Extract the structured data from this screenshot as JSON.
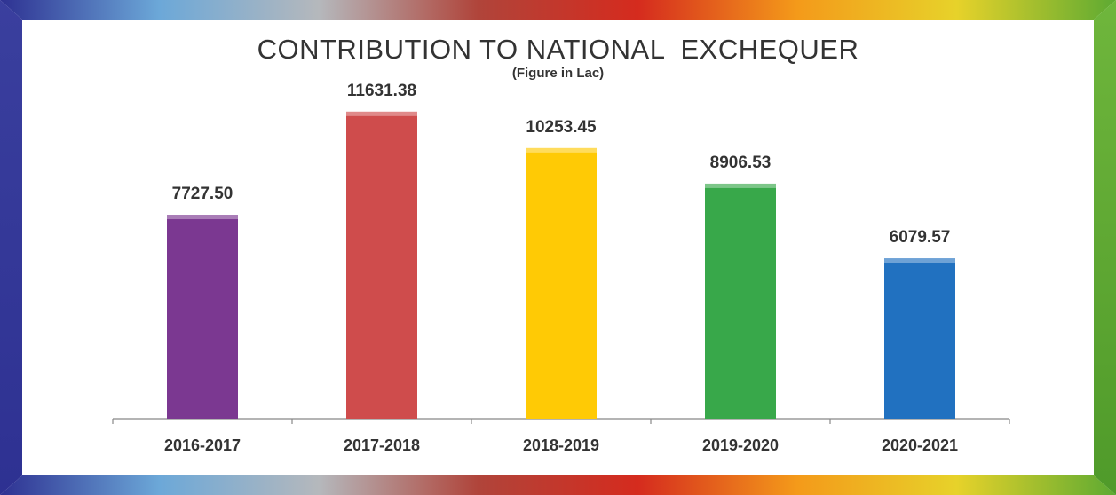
{
  "chart_data": {
    "type": "bar",
    "title": "CONTRIBUTION TO NATIONAL  EXCHEQUER",
    "subtitle": "(Figure in Lac)",
    "categories": [
      "2016-2017",
      "2017-2018",
      "2018-2019",
      "2019-2020",
      "2020-2021"
    ],
    "values": [
      7727.5,
      11631.38,
      10253.45,
      8906.53,
      6079.57
    ],
    "data_labels": [
      "7727.50",
      "11631.38",
      "10253.45",
      "8906.53",
      "6079.57"
    ],
    "bar_colors": [
      "#7B3891",
      "#CF4C4C",
      "#FFCA05",
      "#38A84A",
      "#2171C0"
    ],
    "ylim": [
      0,
      12500
    ],
    "grid": false,
    "legend": "none"
  },
  "frame_colors": {
    "left": "#2E3192",
    "right": "#5DAA32",
    "gradient": [
      "#2E3192",
      "#6CA8D8",
      "#B5B8BC",
      "#B0443A",
      "#D52B1E",
      "#F49A1A",
      "#E7D22A",
      "#5DAA32"
    ]
  }
}
